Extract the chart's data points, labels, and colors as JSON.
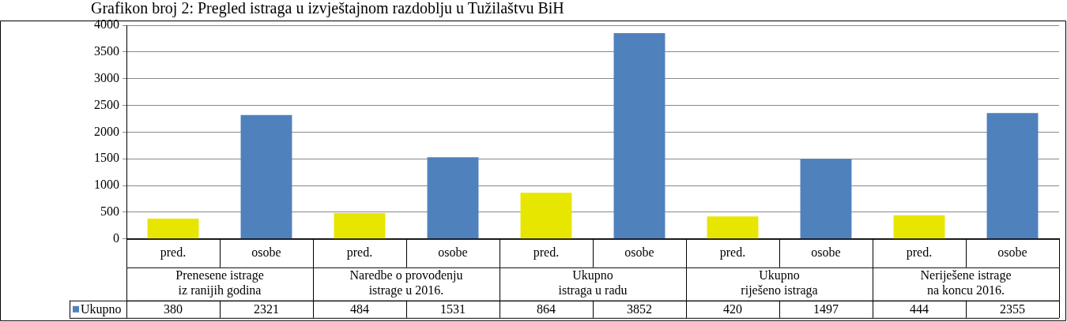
{
  "chart_data": {
    "type": "bar",
    "title": "Grafikon broj 2: Pregled istraga u izvještajnom razdoblju u Tužilaštvu BiH",
    "categories": [
      "pred.",
      "osobe",
      "pred.",
      "osobe",
      "pred.",
      "osobe",
      "pred.",
      "osobe",
      "pred.",
      "osobe"
    ],
    "series": [
      {
        "name": "Ukupno",
        "colors": [
          "#e6e600",
          "#4f81bd",
          "#e6e600",
          "#4f81bd",
          "#e6e600",
          "#4f81bd",
          "#e6e600",
          "#4f81bd",
          "#e6e600",
          "#4f81bd"
        ],
        "color": "#4f81bd",
        "values": [
          380,
          2321,
          484,
          1531,
          864,
          3852,
          420,
          1497,
          444,
          2355
        ]
      }
    ],
    "annotations": [
      "Prenesene istrage\niz ranijih godina",
      "Naredbe o provođenju\nistrage u 2016.",
      "Ukupno\nistraga u radu",
      "Ukupno\nriješeno istraga",
      "Neriješene istrage\nna koncu 2016."
    ],
    "ylim": [
      0,
      4000
    ],
    "yticks": [
      0,
      500,
      1000,
      1500,
      2000,
      2500,
      3000,
      3500,
      4000
    ],
    "grid": "y",
    "legend": "bottom",
    "data_labels": true
  }
}
